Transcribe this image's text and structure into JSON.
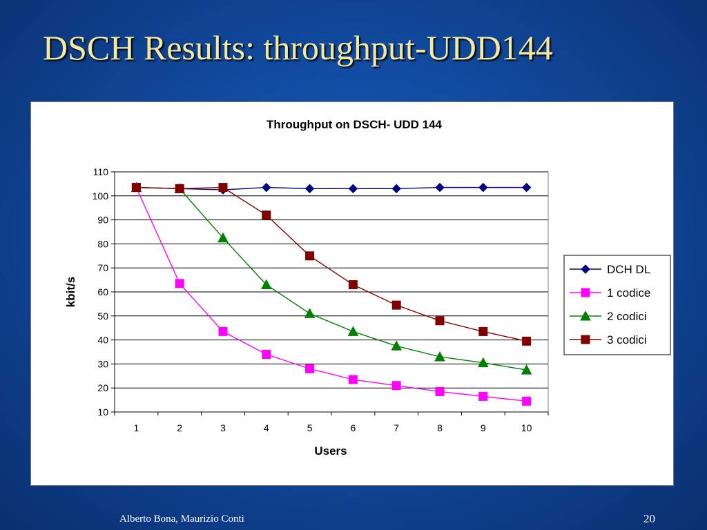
{
  "slide": {
    "title": "DSCH Results: throughput-UDD144",
    "footer_author": "Alberto Bona, Maurizio Conti",
    "page_number": "20"
  },
  "chart_data": {
    "type": "line",
    "title": "Throughput on DSCH- UDD 144",
    "xlabel": "Users",
    "ylabel": "kbit/s",
    "x": [
      1,
      2,
      3,
      4,
      5,
      6,
      7,
      8,
      9,
      10
    ],
    "ylim": [
      10,
      110
    ],
    "yticks": [
      10,
      20,
      30,
      40,
      50,
      60,
      70,
      80,
      90,
      100,
      110
    ],
    "grid": "horizontal",
    "legend_position": "right",
    "series": [
      {
        "name": "DCH DL",
        "color": "#000080",
        "marker": "diamond",
        "values": [
          103.5,
          103,
          102.5,
          103.5,
          103,
          103,
          103,
          103.5,
          103.5,
          103.5
        ]
      },
      {
        "name": "1 codice",
        "color": "#ff00ff",
        "marker": "square",
        "values": [
          103.5,
          63.5,
          43.5,
          34,
          28,
          23.5,
          21,
          18.5,
          16.5,
          14.5
        ]
      },
      {
        "name": "2 codici",
        "color": "#008000",
        "marker": "triangle",
        "values": [
          103.5,
          103,
          82.5,
          63,
          51,
          43.5,
          37.5,
          33,
          30.5,
          27.5
        ]
      },
      {
        "name": "3 codici",
        "color": "#800000",
        "marker": "square",
        "values": [
          103.5,
          103,
          103.5,
          92,
          75,
          63,
          54.5,
          48,
          43.5,
          39.5
        ]
      }
    ]
  }
}
